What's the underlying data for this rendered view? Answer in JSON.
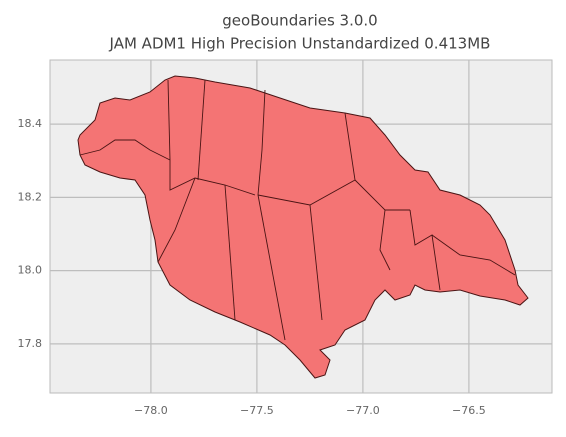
{
  "chart_data": {
    "type": "map",
    "title": "geoBoundaries 3.0.0",
    "subtitle": "JAM ADM1 High Precision Unstandardized 0.413MB",
    "xlim": [
      -78.476,
      -76.108
    ],
    "ylim": [
      17.666,
      18.575
    ],
    "xticks": [
      {
        "value": -78,
        "label": "−78.0"
      },
      {
        "value": -77.5,
        "label": "−77.5"
      },
      {
        "value": -77,
        "label": "−77.0"
      },
      {
        "value": -76.5,
        "label": "−76.5"
      }
    ],
    "yticks": [
      {
        "value": 17.8,
        "label": "17.8"
      },
      {
        "value": 18,
        "label": "18.0"
      },
      18.2,
      18.4
    ],
    "grid": true,
    "color": "#f47474"
  }
}
